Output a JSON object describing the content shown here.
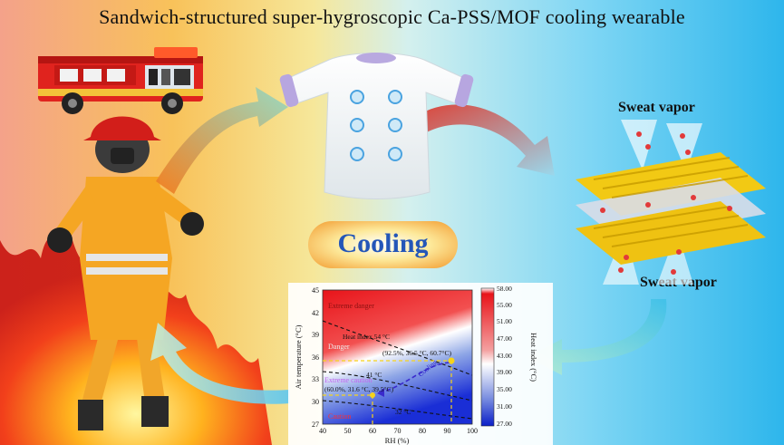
{
  "title": "Sandwich-structured super-hygroscopic Ca-PSS/MOF cooling wearable",
  "center_label": "Cooling",
  "vapor_labels": {
    "top": "Sweat vapor",
    "bottom": "Sweat vapor"
  },
  "chart": {
    "xlabel": "RH (%)",
    "ylabel": "Air temperature (°C)",
    "colorbar_label": "Heat index (°C)",
    "x_ticks": [
      "40",
      "50",
      "60",
      "70",
      "80",
      "90",
      "100"
    ],
    "y_ticks": [
      "27",
      "30",
      "33",
      "36",
      "39",
      "42",
      "45"
    ],
    "colorbar_ticks": [
      "58.00",
      "55.00",
      "51.00",
      "47.00",
      "43.00",
      "39.00",
      "35.00",
      "31.00",
      "27.00"
    ],
    "zones": [
      "Extreme danger",
      "Danger",
      "Extreme caution",
      "Caution"
    ],
    "contours": [
      "Heat index 54 °C",
      "41 °C",
      "32 °C"
    ],
    "points": [
      {
        "label": "(92.5%, 36.5 °C, 60.7°C)"
      },
      {
        "label": "(60.0%, 31.6 °C, 39.5°C)"
      }
    ],
    "arrow_label": "Cooling"
  }
}
